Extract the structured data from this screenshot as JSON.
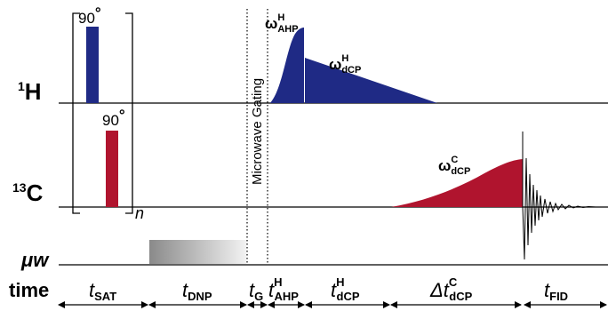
{
  "channels": {
    "h_label": "H",
    "h_mass": "1",
    "c_label": "C",
    "c_mass": "13",
    "mw_label": "μw",
    "time_label": "time"
  },
  "pulses": {
    "h_90": "90",
    "c_90": "90",
    "deg": "°",
    "repeat_n": "n"
  },
  "gating_label": "Microwave Gating",
  "waveforms": {
    "ahp": {
      "base": "ω",
      "sup": "H",
      "sub": "AHP"
    },
    "h_dcp": {
      "base": "ω",
      "sup": "H",
      "sub": "dCP"
    },
    "c_dcp": {
      "base": "ω",
      "sup": "C",
      "sub": "dCP"
    }
  },
  "periods": {
    "sat": {
      "base": "t",
      "sub": "SAT"
    },
    "dnp": {
      "base": "t",
      "sub": "DNP"
    },
    "g": {
      "base": "t",
      "sub": "G"
    },
    "ahp": {
      "base": "t",
      "sup": "H",
      "sub": "AHP"
    },
    "dcp_h": {
      "base": "t",
      "sup": "H",
      "sub": "dCP"
    },
    "dcp_c": {
      "prefix": "Δ",
      "base": "t",
      "sup": "C",
      "sub": "dCP"
    },
    "fid": {
      "base": "t",
      "sub": "FID"
    }
  },
  "colors": {
    "proton": "#1f2a85",
    "carbon": "#b0142e",
    "line": "#000000"
  }
}
